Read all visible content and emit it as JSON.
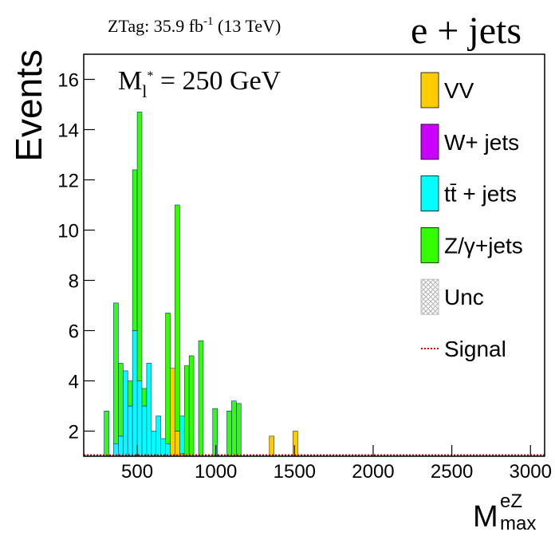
{
  "chart_data": {
    "type": "stacked-histogram",
    "header": {
      "text": "ZTag: 35.9 fb",
      "sup": "-1",
      "tail": " (13 TeV)"
    },
    "channel": "e + jets",
    "annotation": {
      "text": "M",
      "sub": "l",
      "sup": "*",
      "tail": " = 250 GeV"
    },
    "y_label": "Events",
    "x_label": {
      "text": "M",
      "sup": "eZ",
      "sub": "max"
    },
    "xlim": [
      160,
      3090
    ],
    "ylim": [
      1,
      17
    ],
    "xticks": [
      500,
      1000,
      1500,
      2000,
      2500,
      3000
    ],
    "yticks": [
      2,
      4,
      6,
      8,
      10,
      12,
      14,
      16
    ],
    "bins": [
      290,
      320,
      350,
      380,
      410,
      440,
      470,
      500,
      530,
      560,
      590,
      620,
      650,
      680,
      710,
      740,
      770,
      800,
      830,
      860,
      890,
      920,
      950,
      980,
      1010,
      1040,
      1070,
      1100,
      1130,
      1160,
      1190,
      1220,
      1250,
      1280,
      1310,
      1340,
      1370,
      1400,
      1430,
      1460,
      1490,
      1520
    ],
    "series": [
      {
        "name": "VV",
        "color": "#ffcc00",
        "values": [
          0,
          0,
          0,
          0,
          0,
          0,
          0,
          0,
          0,
          0,
          0,
          0,
          0,
          0,
          4.5,
          2.0,
          1.1,
          0,
          0,
          0,
          0,
          0,
          0,
          0,
          0,
          0,
          0,
          0,
          0,
          0,
          0,
          0,
          0,
          0,
          0,
          1.8,
          0,
          0,
          0,
          0,
          2.0
        ]
      },
      {
        "name": "W+ jets",
        "color": "#cc00ff",
        "values": [
          0,
          0,
          0,
          0,
          0,
          0,
          0,
          0,
          0,
          0,
          0,
          0,
          0,
          0,
          0,
          0,
          0,
          0,
          0,
          0,
          0,
          0,
          0,
          0,
          0,
          0,
          0,
          0,
          0,
          0,
          0,
          0,
          0,
          0,
          0,
          0,
          0,
          0,
          0,
          0,
          0
        ]
      },
      {
        "name": "tt̄ + jets",
        "color": "#00ffff",
        "values": [
          0,
          0,
          1.5,
          1.8,
          4.4,
          3.0,
          6.0,
          4.0,
          3.0,
          4.7,
          2.0,
          2.6,
          1.7,
          1.5,
          0,
          0,
          1.5,
          0,
          0,
          0,
          0,
          0,
          0,
          0,
          0,
          0,
          0,
          0,
          0,
          0,
          0,
          0,
          0,
          0,
          0,
          0,
          0,
          0,
          0,
          0,
          0
        ]
      },
      {
        "name": "Z/γ+jets",
        "color": "#33ff00",
        "values": [
          2.8,
          0,
          5.6,
          2.9,
          0,
          1.0,
          6.4,
          10.7,
          0.7,
          0,
          0,
          0,
          0,
          5.2,
          0,
          9.0,
          0,
          4.6,
          5.0,
          0,
          5.6,
          0,
          0,
          2.9,
          0,
          0,
          2.8,
          3.2,
          3.1,
          0,
          0,
          0,
          0,
          0,
          0,
          0,
          0,
          0,
          0,
          0,
          0
        ]
      }
    ],
    "overlays": [
      {
        "name": "Unc",
        "style": "hatch",
        "color": "#aaaaaa"
      },
      {
        "name": "Signal",
        "style": "dotted",
        "color": "#e00000"
      }
    ]
  }
}
